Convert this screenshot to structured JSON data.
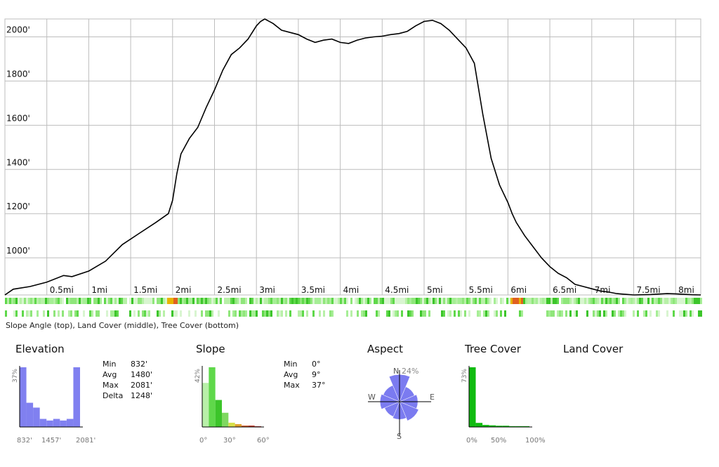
{
  "chart_data": [
    {
      "type": "line",
      "xlim": [
        0,
        8.3
      ],
      "ylim": [
        832,
        2081
      ],
      "x_ticks": [
        0.5,
        1,
        1.5,
        2,
        2.5,
        3,
        3.5,
        4,
        4.5,
        5,
        5.5,
        6,
        6.5,
        7,
        7.5,
        8
      ],
      "x_tick_labels": [
        "0.5mi",
        "1mi",
        "1.5mi",
        "2mi",
        "2.5mi",
        "3mi",
        "3.5mi",
        "4mi",
        "4.5mi",
        "5mi",
        "5.5mi",
        "6mi",
        "6.5mi",
        "7mi",
        "7.5mi",
        "8mi"
      ],
      "y_ticks": [
        1000,
        1200,
        1400,
        1600,
        1800,
        2000
      ],
      "y_tick_labels": [
        "1000'",
        "1200'",
        "1400'",
        "1600'",
        "1800'",
        "2000'"
      ],
      "grid": true,
      "series": [
        {
          "x": [
            0,
            0.1,
            0.3,
            0.5,
            0.7,
            0.8,
            1.0,
            1.2,
            1.4,
            1.6,
            1.8,
            1.95,
            2.0,
            2.05,
            2.1,
            2.2,
            2.3,
            2.4,
            2.5,
            2.6,
            2.7,
            2.8,
            2.9,
            3.0,
            3.05,
            3.1,
            3.2,
            3.3,
            3.4,
            3.5,
            3.6,
            3.7,
            3.8,
            3.9,
            4.0,
            4.1,
            4.2,
            4.3,
            4.4,
            4.5,
            4.6,
            4.7,
            4.8,
            4.9,
            5.0,
            5.1,
            5.2,
            5.3,
            5.4,
            5.5,
            5.6,
            5.7,
            5.8,
            5.9,
            6.0,
            6.05,
            6.1,
            6.2,
            6.3,
            6.4,
            6.5,
            6.6,
            6.7,
            6.8,
            6.9,
            7.0,
            7.1,
            7.2,
            7.3,
            7.4,
            7.5,
            7.6,
            7.7,
            7.8,
            7.9,
            8.0,
            8.1,
            8.2,
            8.3
          ],
          "y": [
            832,
            858,
            870,
            890,
            920,
            915,
            940,
            985,
            1060,
            1110,
            1160,
            1200,
            1260,
            1380,
            1470,
            1540,
            1590,
            1680,
            1760,
            1850,
            1920,
            1950,
            1990,
            2050,
            2070,
            2081,
            2060,
            2030,
            2020,
            2010,
            1990,
            1975,
            1985,
            1990,
            1975,
            1970,
            1985,
            1995,
            2000,
            2003,
            2010,
            2015,
            2025,
            2050,
            2070,
            2075,
            2060,
            2030,
            1990,
            1950,
            1880,
            1650,
            1450,
            1330,
            1250,
            1200,
            1160,
            1100,
            1050,
            1000,
            960,
            930,
            910,
            880,
            870,
            860,
            850,
            845,
            838,
            835,
            832,
            833,
            834,
            836,
            838,
            837,
            835,
            833,
            832
          ]
        }
      ]
    },
    {
      "type": "bar",
      "title": "Elevation",
      "values": [
        0.37,
        0.15,
        0.12,
        0.05,
        0.04,
        0.05,
        0.04,
        0.05,
        0.37
      ],
      "ymax_label": "37%",
      "x_tick_labels": [
        "832'",
        "1457'",
        "2081'"
      ]
    },
    {
      "type": "bar",
      "title": "Slope",
      "values": [
        0.31,
        0.42,
        0.19,
        0.1,
        0.03,
        0.02,
        0.01,
        0.01,
        0.005
      ],
      "ymax_label": "42%",
      "x_tick_labels": [
        "0°",
        "30°",
        "60°"
      ]
    },
    {
      "type": "bar",
      "title": "Tree Cover",
      "values": [
        0.73,
        0.05,
        0.025,
        0.02,
        0.015,
        0.015,
        0.01,
        0.01,
        0.01
      ],
      "ymax_label": "73%",
      "x_tick_labels": [
        "0%",
        "50%",
        "100%"
      ]
    }
  ],
  "caption": "Slope Angle (top), Land Cover (middle), Tree Cover (bottom)",
  "elevation_stats": {
    "title": "Elevation",
    "rows": [
      {
        "k": "Min",
        "v": "832'"
      },
      {
        "k": "Avg",
        "v": "1480'"
      },
      {
        "k": "Max",
        "v": "2081'"
      },
      {
        "k": "Delta",
        "v": "1248'"
      }
    ]
  },
  "slope_stats": {
    "title": "Slope",
    "rows": [
      {
        "k": "Min",
        "v": "0°"
      },
      {
        "k": "Avg",
        "v": "9°"
      },
      {
        "k": "Max",
        "v": "37°"
      }
    ]
  },
  "aspect": {
    "title": "Aspect",
    "n_label": "N",
    "pct_label": "24%",
    "e_label": "E",
    "w_label": "W",
    "s_label": "S",
    "petals": [
      0.92,
      0.55,
      0.62,
      0.7,
      0.6,
      0.55,
      0.66,
      0.6
    ]
  },
  "tree_cover_title": "Tree Cover",
  "land_cover_title": "Land Cover",
  "colors": {
    "line": "#000000",
    "grid": "#bdbdbd",
    "elev_bar": "#8080f0",
    "tree_bar": "#11bb11",
    "aspect": "#7b7bf0"
  }
}
